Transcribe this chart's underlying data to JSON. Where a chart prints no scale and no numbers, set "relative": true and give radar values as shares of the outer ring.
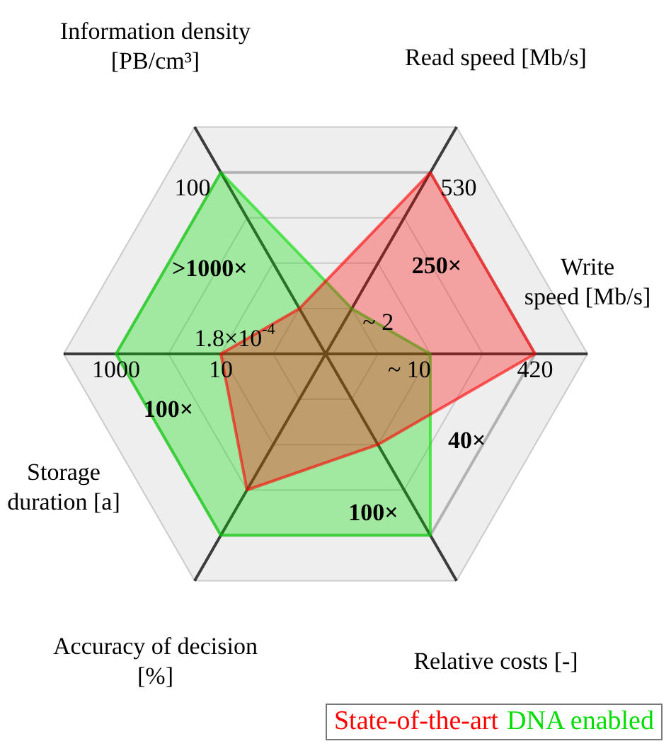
{
  "chart_data": {
    "type": "radar",
    "relative": true,
    "legend": "bottom right",
    "marker": "none",
    "grid": true,
    "categories": [
      "Information density [PB/cm³]",
      "Read speed [Mb/s]",
      "Write speed [Mb/s]",
      "Relative costs [-]",
      "Accuracy of decision [%]",
      "Storage duration [a]"
    ],
    "series": [
      {
        "name": "State-of-the-art",
        "color": "#ff0000",
        "values": [
          0.2,
          0.8,
          0.8,
          0.4,
          0.6,
          0.4
        ]
      },
      {
        "name": "DNA enabled",
        "color": "#00dd00",
        "values": [
          0.8,
          0.2,
          0.4,
          0.8,
          0.8,
          0.8
        ]
      }
    ],
    "annotations": [
      "100",
      ">1000×",
      "1.8×10$^{-4}$",
      "530",
      "250×",
      "~ 2",
      "420",
      "40×",
      "~ 10",
      "100×",
      "1000",
      "100×",
      "10"
    ]
  }
}
